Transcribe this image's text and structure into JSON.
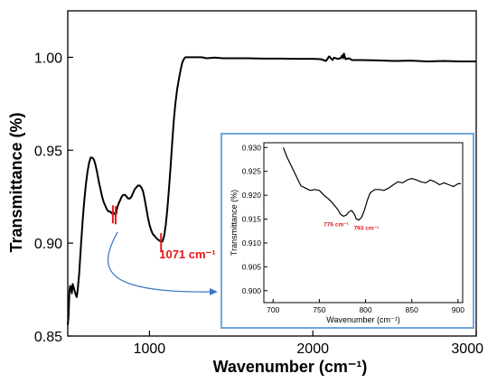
{
  "chart_data": [
    {
      "type": "line",
      "xlabel": "Wavenumber (cm⁻¹)",
      "ylabel": "Transmittance (%)",
      "xlim": [
        500,
        3000
      ],
      "ylim": [
        0.85,
        1.025
      ],
      "x_ticks": [
        1000,
        2000,
        3000
      ],
      "x_tick_labels": [
        "1000",
        "2000",
        "3000"
      ],
      "y_ticks": [
        0.85,
        0.9,
        0.95,
        1.0
      ],
      "y_tick_labels": [
        "0.85",
        "0.90",
        "0.95",
        "1.00"
      ],
      "line_color": "#000000",
      "series": [
        {
          "x": [
            500,
            505,
            510,
            515,
            520,
            525,
            530,
            540,
            550,
            555,
            560,
            570,
            580,
            590,
            600,
            610,
            620,
            630,
            640,
            650,
            660,
            670,
            680,
            690,
            700,
            710,
            720,
            730,
            740,
            750,
            760,
            770,
            776,
            780,
            785,
            790,
            793,
            797,
            800,
            810,
            820,
            830,
            840,
            850,
            860,
            870,
            880,
            890,
            900,
            910,
            920,
            930,
            940,
            950,
            960,
            970,
            980,
            990,
            1000,
            1010,
            1020,
            1030,
            1040,
            1050,
            1060,
            1065,
            1071,
            1080,
            1090,
            1100,
            1110,
            1120,
            1130,
            1140,
            1150,
            1160,
            1170,
            1180,
            1190,
            1200,
            1210,
            1220,
            1230,
            1240,
            1250,
            1260,
            1270,
            1280,
            1300,
            1320,
            1350,
            1400,
            1450,
            1500,
            1600,
            1700,
            1800,
            1900,
            2000,
            2050,
            2080,
            2100,
            2120,
            2130,
            2150,
            2170,
            2180,
            2185,
            2190,
            2200,
            2220,
            2240,
            2300,
            2400,
            2500,
            2600,
            2700,
            2800,
            2900,
            3000
          ],
          "y": [
            0.856,
            0.861,
            0.874,
            0.877,
            0.876,
            0.873,
            0.878,
            0.875,
            0.872,
            0.871,
            0.874,
            0.884,
            0.898,
            0.911,
            0.922,
            0.931,
            0.938,
            0.943,
            0.946,
            0.946,
            0.945,
            0.942,
            0.938,
            0.933,
            0.929,
            0.925,
            0.922,
            0.92,
            0.918,
            0.917,
            0.917,
            0.916,
            0.9155,
            0.9157,
            0.9162,
            0.9155,
            0.915,
            0.916,
            0.918,
            0.921,
            0.923,
            0.925,
            0.926,
            0.926,
            0.925,
            0.924,
            0.924,
            0.925,
            0.927,
            0.929,
            0.93,
            0.931,
            0.931,
            0.93,
            0.928,
            0.924,
            0.919,
            0.914,
            0.91,
            0.907,
            0.905,
            0.904,
            0.903,
            0.902,
            0.9015,
            0.901,
            0.9005,
            0.901,
            0.904,
            0.91,
            0.919,
            0.93,
            0.942,
            0.955,
            0.967,
            0.976,
            0.983,
            0.988,
            0.993,
            0.997,
            0.999,
            1.0,
            1.0,
            1.0,
            1.0,
            1.0,
            1.0,
            1.0,
            1.0,
            1.0,
            0.9995,
            0.9998,
            0.9995,
            0.9995,
            0.9995,
            0.9993,
            0.9993,
            0.9992,
            0.9992,
            0.999,
            0.998,
            1.0005,
            0.9985,
            0.9998,
            0.9992,
            0.9995,
            1.001,
            0.9995,
            1.002,
            0.999,
            0.9995,
            0.9985,
            0.9985,
            0.9983,
            0.998,
            0.9982,
            0.9978,
            0.998,
            0.9978,
            0.9978
          ]
        }
      ],
      "annotations": [
        {
          "text": "1071 cm⁻¹",
          "x": 1071,
          "y": 0.9005,
          "color": "#e31a1c"
        }
      ],
      "marker_color": "#e31a1c",
      "markers": [
        {
          "x": 776,
          "y": 0.9155
        },
        {
          "x": 793,
          "y": 0.915
        },
        {
          "x": 1071,
          "y": 0.9005
        }
      ],
      "arrow_color": "#3a75c4"
    },
    {
      "type": "line",
      "xlabel": "Wavenumber (cm⁻¹)",
      "ylabel": "Transmittance (%)",
      "xlim": [
        690,
        905
      ],
      "ylim": [
        0.8975,
        0.931
      ],
      "x_ticks": [
        700,
        750,
        800,
        850,
        900
      ],
      "x_tick_labels": [
        "700",
        "750",
        "800",
        "850",
        "900"
      ],
      "y_ticks": [
        0.9,
        0.905,
        0.91,
        0.915,
        0.92,
        0.925,
        0.93
      ],
      "y_tick_labels": [
        "0.900",
        "0.905",
        "0.910",
        "0.915",
        "0.920",
        "0.925",
        "0.930"
      ],
      "border_color": "#6fa8dc",
      "line_color": "#000000",
      "series": [
        {
          "x": [
            711,
            715,
            720,
            725,
            730,
            735,
            740,
            745,
            750,
            755,
            760,
            765,
            770,
            773,
            776,
            779,
            782,
            785,
            788,
            790,
            793,
            796,
            799,
            802,
            805,
            810,
            815,
            820,
            825,
            830,
            835,
            840,
            845,
            850,
            855,
            860,
            865,
            870,
            875,
            880,
            885,
            890,
            895,
            900,
            903
          ],
          "y": [
            0.93,
            0.928,
            0.926,
            0.924,
            0.922,
            0.9215,
            0.921,
            0.9212,
            0.921,
            0.92,
            0.9192,
            0.9182,
            0.917,
            0.916,
            0.9156,
            0.9158,
            0.9165,
            0.9168,
            0.916,
            0.915,
            0.9148,
            0.9155,
            0.917,
            0.919,
            0.9205,
            0.9212,
            0.9212,
            0.921,
            0.9215,
            0.9222,
            0.9228,
            0.9226,
            0.9232,
            0.9235,
            0.9232,
            0.9228,
            0.9226,
            0.9232,
            0.9228,
            0.9222,
            0.9226,
            0.9222,
            0.9218,
            0.9224,
            0.9224
          ]
        }
      ],
      "annotations": [
        {
          "text": "776 cm⁻¹",
          "x": 776,
          "y": 0.9156,
          "color": "#e31a1c"
        },
        {
          "text": "793 cm⁻¹",
          "x": 793,
          "y": 0.9148,
          "color": "#e31a1c"
        }
      ]
    }
  ]
}
